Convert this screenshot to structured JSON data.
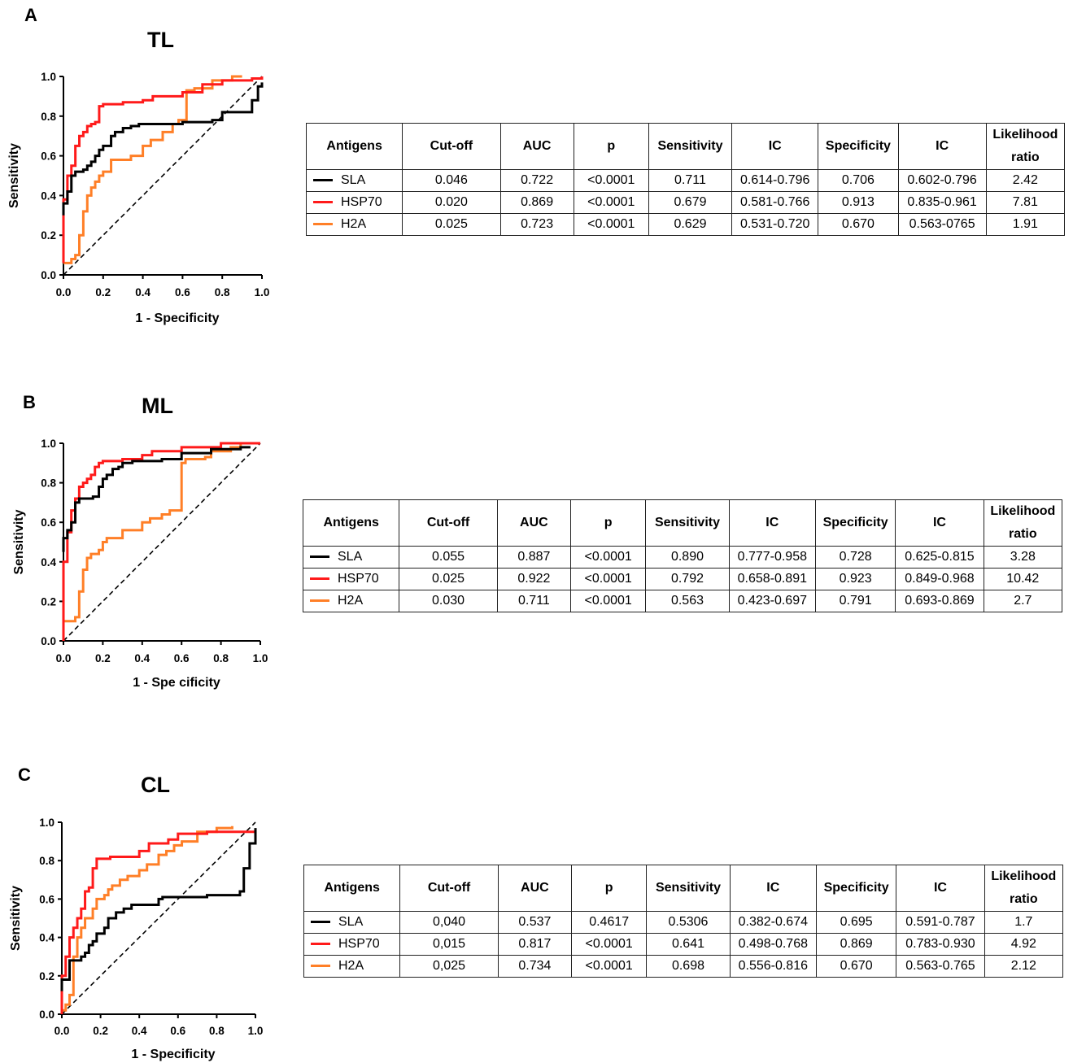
{
  "panels": [
    {
      "letter": "A",
      "title": "TL",
      "table": {
        "headers": [
          "Antigens",
          "Cut-off",
          "AUC",
          "p",
          "Sensitivity",
          "IC",
          "Specificity",
          "IC",
          "Likelihood ratio"
        ],
        "rows": [
          {
            "antigen": "SLA",
            "color": "#000000",
            "cutoff": "0.046",
            "auc": "0.722",
            "p": "<0.0001",
            "sensitivity": "0.711",
            "ic1": "0.614-0.796",
            "specificity": "0.706",
            "ic2": "0.602-0.796",
            "lr": "2.42"
          },
          {
            "antigen": "HSP70",
            "color": "#ff1a1a",
            "cutoff": "0.020",
            "auc": "0.869",
            "p": "<0.0001",
            "sensitivity": "0.679",
            "ic1": "0.581-0.766",
            "specificity": "0.913",
            "ic2": "0.835-0.961",
            "lr": "7.81"
          },
          {
            "antigen": "H2A",
            "color": "#ff7f27",
            "cutoff": "0.025",
            "auc": "0.723",
            "p": "<0.0001",
            "sensitivity": "0.629",
            "ic1": "0.531-0.720",
            "specificity": "0.670",
            "ic2": "0.563-0765",
            "lr": "1.91"
          }
        ]
      }
    },
    {
      "letter": "B",
      "title": "ML",
      "table": {
        "headers": [
          "Antigens",
          "Cut-off",
          "AUC",
          "p",
          "Sensitivity",
          "IC",
          "Specificity",
          "IC",
          "Likelihood ratio"
        ],
        "rows": [
          {
            "antigen": "SLA",
            "color": "#000000",
            "cutoff": "0.055",
            "auc": "0.887",
            "p": "<0.0001",
            "sensitivity": "0.890",
            "ic1": "0.777-0.958",
            "specificity": "0.728",
            "ic2": "0.625-0.815",
            "lr": "3.28"
          },
          {
            "antigen": "HSP70",
            "color": "#ff1a1a",
            "cutoff": "0.025",
            "auc": "0.922",
            "p": "<0.0001",
            "sensitivity": "0.792",
            "ic1": "0.658-0.891",
            "specificity": "0.923",
            "ic2": "0.849-0.968",
            "lr": "10.42"
          },
          {
            "antigen": "H2A",
            "color": "#ff7f27",
            "cutoff": "0.030",
            "auc": "0.711",
            "p": "<0.0001",
            "sensitivity": "0.563",
            "ic1": "0.423-0.697",
            "specificity": "0.791",
            "ic2": "0.693-0.869",
            "lr": "2.7"
          }
        ]
      }
    },
    {
      "letter": "C",
      "title": "CL",
      "table": {
        "headers": [
          "Antigens",
          "Cut-off",
          "AUC",
          "p",
          "Sensitivity",
          "IC",
          "Specificity",
          "IC",
          "Likelihood ratio"
        ],
        "rows": [
          {
            "antigen": "SLA",
            "color": "#000000",
            "cutoff": "0,040",
            "auc": "0.537",
            "p": "0.4617",
            "sensitivity": "0.5306",
            "ic1": "0.382-0.674",
            "specificity": "0.695",
            "ic2": "0.591-0.787",
            "lr": "1.7"
          },
          {
            "antigen": "HSP70",
            "color": "#ff1a1a",
            "cutoff": "0,015",
            "auc": "0.817",
            "p": "<0.0001",
            "sensitivity": "0.641",
            "ic1": "0.498-0.768",
            "specificity": "0.869",
            "ic2": "0.783-0.930",
            "lr": "4.92"
          },
          {
            "antigen": "H2A",
            "color": "#ff7f27",
            "cutoff": "0,025",
            "auc": "0.734",
            "p": "<0.0001",
            "sensitivity": "0.698",
            "ic1": "0.556-0.816",
            "specificity": "0.670",
            "ic2": "0.563-0.765",
            "lr": "2.12"
          }
        ]
      }
    }
  ],
  "chart_data": [
    {
      "type": "line",
      "title": "TL",
      "xlabel": "1 - Specificity",
      "ylabel": "Sensitivity",
      "xlim": [
        0,
        1
      ],
      "ylim": [
        0,
        1
      ],
      "xticks": [
        "0.0",
        "0.2",
        "0.4",
        "0.6",
        "0.8",
        "1.0"
      ],
      "yticks": [
        "0.0",
        "0.2",
        "0.4",
        "0.6",
        "0.8",
        "1.0"
      ],
      "reference_line": {
        "x": [
          0,
          1
        ],
        "y": [
          0,
          1
        ],
        "style": "dashed"
      },
      "series": [
        {
          "name": "SLA",
          "color": "#000000",
          "x": [
            0,
            0,
            0.02,
            0.02,
            0.04,
            0.04,
            0.06,
            0.06,
            0.1,
            0.12,
            0.14,
            0.16,
            0.18,
            0.2,
            0.24,
            0.26,
            0.3,
            0.34,
            0.38,
            0.45,
            0.6,
            0.75,
            0.8,
            0.95,
            0.95,
            0.98,
            1.0
          ],
          "y": [
            0.3,
            0.36,
            0.36,
            0.42,
            0.46,
            0.5,
            0.5,
            0.52,
            0.53,
            0.55,
            0.57,
            0.6,
            0.63,
            0.65,
            0.7,
            0.72,
            0.74,
            0.75,
            0.76,
            0.76,
            0.77,
            0.78,
            0.82,
            0.82,
            0.88,
            0.95,
            0.97
          ]
        },
        {
          "name": "HSP70",
          "color": "#ff1a1a",
          "x": [
            0,
            0,
            0.02,
            0.02,
            0.04,
            0.06,
            0.08,
            0.1,
            0.12,
            0.14,
            0.16,
            0.18,
            0.2,
            0.3,
            0.4,
            0.45,
            0.6,
            0.7,
            0.8,
            0.9,
            0.95,
            1.0
          ],
          "y": [
            0.06,
            0.38,
            0.4,
            0.5,
            0.55,
            0.65,
            0.7,
            0.72,
            0.75,
            0.76,
            0.77,
            0.85,
            0.86,
            0.87,
            0.88,
            0.9,
            0.92,
            0.96,
            0.98,
            0.98,
            0.99,
            1.0
          ]
        },
        {
          "name": "H2A",
          "color": "#ff7f27",
          "x": [
            0,
            0.04,
            0.06,
            0.08,
            0.1,
            0.12,
            0.14,
            0.16,
            0.18,
            0.2,
            0.22,
            0.24,
            0.3,
            0.34,
            0.4,
            0.44,
            0.5,
            0.55,
            0.58,
            0.62,
            0.66,
            0.75,
            0.85,
            0.9
          ],
          "y": [
            0.06,
            0.08,
            0.1,
            0.2,
            0.32,
            0.4,
            0.44,
            0.47,
            0.5,
            0.52,
            0.52,
            0.58,
            0.58,
            0.6,
            0.65,
            0.68,
            0.72,
            0.76,
            0.78,
            0.93,
            0.94,
            0.98,
            1.0,
            1.0
          ]
        }
      ]
    },
    {
      "type": "line",
      "title": "ML",
      "xlabel": "1 - Spe cificity",
      "ylabel": "Sensitivity",
      "xlim": [
        0,
        1
      ],
      "ylim": [
        0,
        1
      ],
      "xticks": [
        "0.0",
        "0.2",
        "0.4",
        "0.6",
        "0.8",
        "1.0"
      ],
      "yticks": [
        "0.0",
        "0.2",
        "0.4",
        "0.6",
        "0.8",
        "1.0"
      ],
      "reference_line": {
        "x": [
          0,
          1
        ],
        "y": [
          0,
          1
        ],
        "style": "dashed"
      },
      "series": [
        {
          "name": "SLA",
          "color": "#000000",
          "x": [
            0,
            0,
            0.02,
            0.04,
            0.06,
            0.06,
            0.08,
            0.15,
            0.18,
            0.2,
            0.22,
            0.25,
            0.28,
            0.3,
            0.35,
            0.5,
            0.6,
            0.75,
            0.9,
            0.95
          ],
          "y": [
            0.45,
            0.52,
            0.56,
            0.6,
            0.62,
            0.7,
            0.72,
            0.73,
            0.78,
            0.82,
            0.84,
            0.87,
            0.88,
            0.9,
            0.91,
            0.92,
            0.95,
            0.97,
            0.98,
            0.98
          ]
        },
        {
          "name": "HSP70",
          "color": "#ff1a1a",
          "x": [
            0,
            0,
            0.02,
            0.04,
            0.06,
            0.08,
            0.1,
            0.12,
            0.14,
            0.16,
            0.18,
            0.2,
            0.3,
            0.4,
            0.45,
            0.6,
            0.8,
            0.9,
            1.0
          ],
          "y": [
            0,
            0.4,
            0.55,
            0.66,
            0.72,
            0.78,
            0.8,
            0.82,
            0.84,
            0.88,
            0.9,
            0.91,
            0.92,
            0.94,
            0.96,
            0.98,
            1.0,
            1.0,
            1.0
          ]
        },
        {
          "name": "H2A",
          "color": "#ff7f27",
          "x": [
            0,
            0,
            0.02,
            0.06,
            0.08,
            0.1,
            0.12,
            0.14,
            0.18,
            0.2,
            0.22,
            0.3,
            0.34,
            0.4,
            0.44,
            0.5,
            0.54,
            0.6,
            0.6,
            0.62,
            0.72,
            0.75,
            0.85,
            0.9
          ],
          "y": [
            0,
            0.1,
            0.1,
            0.12,
            0.25,
            0.36,
            0.42,
            0.44,
            0.46,
            0.5,
            0.52,
            0.56,
            0.56,
            0.6,
            0.62,
            0.64,
            0.66,
            0.75,
            0.9,
            0.92,
            0.93,
            0.96,
            0.98,
            1.0
          ]
        }
      ]
    },
    {
      "type": "line",
      "title": "CL",
      "xlabel": "1 - Specificity",
      "ylabel": "Sensitivity",
      "xlim": [
        0,
        1
      ],
      "ylim": [
        0,
        1
      ],
      "xticks": [
        "0.0",
        "0.2",
        "0.4",
        "0.6",
        "0.8",
        "1.0"
      ],
      "yticks": [
        "0.0",
        "0.2",
        "0.4",
        "0.6",
        "0.8",
        "1.0"
      ],
      "reference_line": {
        "x": [
          0,
          1
        ],
        "y": [
          0,
          1
        ],
        "style": "dashed"
      },
      "series": [
        {
          "name": "SLA",
          "color": "#000000",
          "x": [
            0,
            0,
            0.04,
            0.04,
            0.1,
            0.12,
            0.14,
            0.16,
            0.18,
            0.22,
            0.24,
            0.28,
            0.32,
            0.36,
            0.45,
            0.5,
            0.52,
            0.75,
            0.92,
            0.94,
            0.97,
            1.0
          ],
          "y": [
            0.12,
            0.18,
            0.22,
            0.28,
            0.3,
            0.32,
            0.36,
            0.38,
            0.42,
            0.45,
            0.5,
            0.53,
            0.55,
            0.57,
            0.57,
            0.6,
            0.61,
            0.62,
            0.64,
            0.76,
            0.89,
            0.97
          ]
        },
        {
          "name": "HSP70",
          "color": "#ff1a1a",
          "x": [
            0,
            0,
            0.02,
            0.04,
            0.06,
            0.08,
            0.1,
            0.12,
            0.14,
            0.16,
            0.18,
            0.25,
            0.4,
            0.45,
            0.55,
            0.6,
            0.75,
            1.0
          ],
          "y": [
            0,
            0.2,
            0.3,
            0.4,
            0.45,
            0.5,
            0.55,
            0.64,
            0.66,
            0.76,
            0.81,
            0.82,
            0.85,
            0.89,
            0.91,
            0.94,
            0.95,
            0.96
          ]
        },
        {
          "name": "H2A",
          "color": "#ff7f27",
          "x": [
            0,
            0.02,
            0.04,
            0.06,
            0.08,
            0.1,
            0.12,
            0.16,
            0.18,
            0.22,
            0.24,
            0.26,
            0.3,
            0.34,
            0.4,
            0.44,
            0.5,
            0.54,
            0.58,
            0.62,
            0.7,
            0.8,
            0.88
          ],
          "y": [
            0.02,
            0.05,
            0.1,
            0.3,
            0.4,
            0.45,
            0.5,
            0.55,
            0.6,
            0.62,
            0.65,
            0.67,
            0.7,
            0.72,
            0.75,
            0.78,
            0.83,
            0.85,
            0.88,
            0.9,
            0.95,
            0.97,
            0.98
          ]
        }
      ]
    }
  ]
}
